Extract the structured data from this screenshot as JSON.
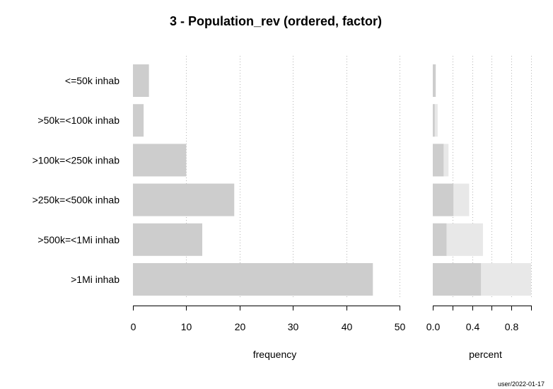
{
  "chart_data": {
    "title": "3 - Population_rev (ordered, factor)",
    "categories": [
      "<=50k inhab",
      ">50k=<100k inhab",
      ">100k=<250k inhab",
      ">250k=<500k inhab",
      ">500k=<1Mi inhab",
      ">1Mi inhab"
    ],
    "panels": [
      {
        "type": "bar",
        "orientation": "horizontal",
        "xlabel": "frequency",
        "xlim": [
          0,
          50
        ],
        "ticks": [
          0,
          10,
          20,
          30,
          40,
          50
        ],
        "values": [
          3,
          2,
          10,
          19,
          13,
          45
        ],
        "color": "#cdcdcd",
        "grid": true
      },
      {
        "type": "bar",
        "orientation": "horizontal",
        "xlabel": "percent",
        "xlim": [
          0,
          1
        ],
        "ticks": [
          0.0,
          0.4,
          0.8
        ],
        "tick_labels": [
          "0.0",
          "0.4",
          "0.8"
        ],
        "series": [
          {
            "values": [
              0.03,
              0.02,
              0.11,
              0.21,
              0.14,
              0.49
            ],
            "color": "#cdcdcd"
          },
          {
            "values": [
              0.03,
              0.05,
              0.16,
              0.37,
              0.51,
              1.0
            ],
            "color": "#e8e8e8"
          }
        ],
        "grid": true
      }
    ],
    "footer": "user/2022-01-17"
  }
}
